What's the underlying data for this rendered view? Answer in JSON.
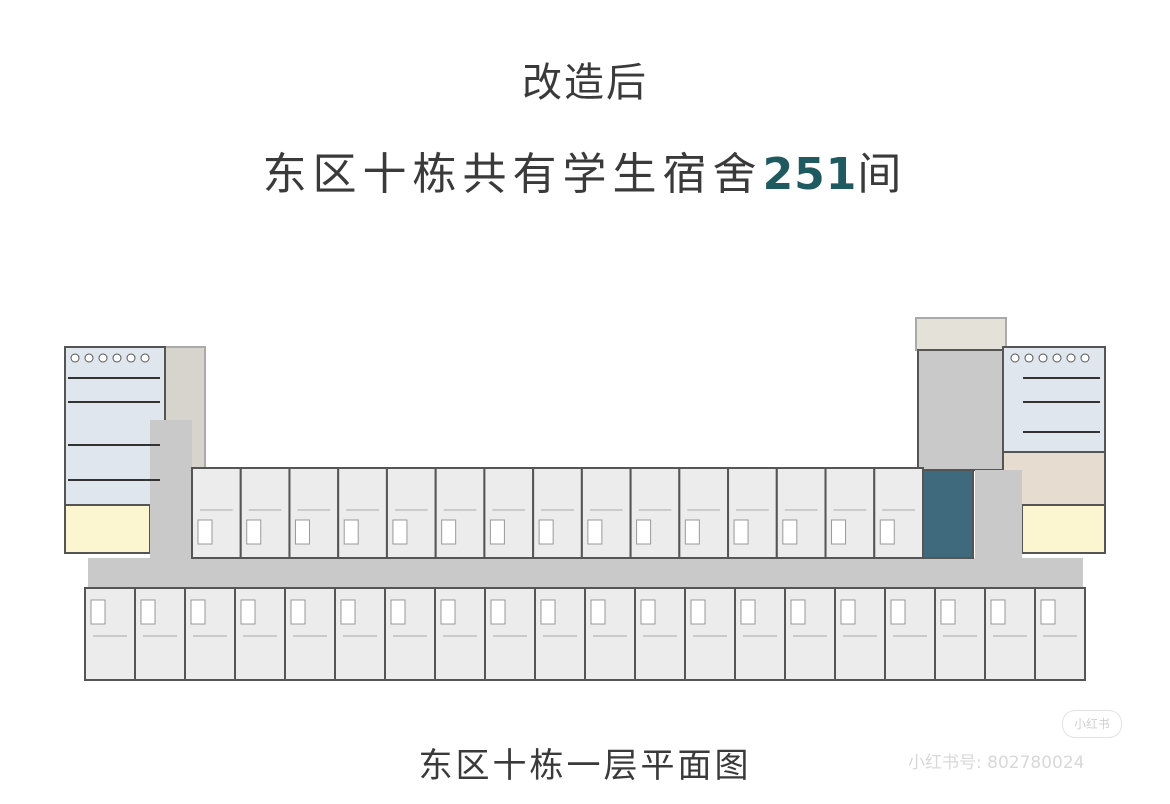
{
  "header": {
    "title": "改造后",
    "subtitle_before": "东区十栋共有学生宿舍",
    "subtitle_number": "251",
    "subtitle_after": "间"
  },
  "caption": "东区十栋一层平面图",
  "watermark": {
    "logo": "小红书",
    "text": "小红书号: 802780024"
  }
}
